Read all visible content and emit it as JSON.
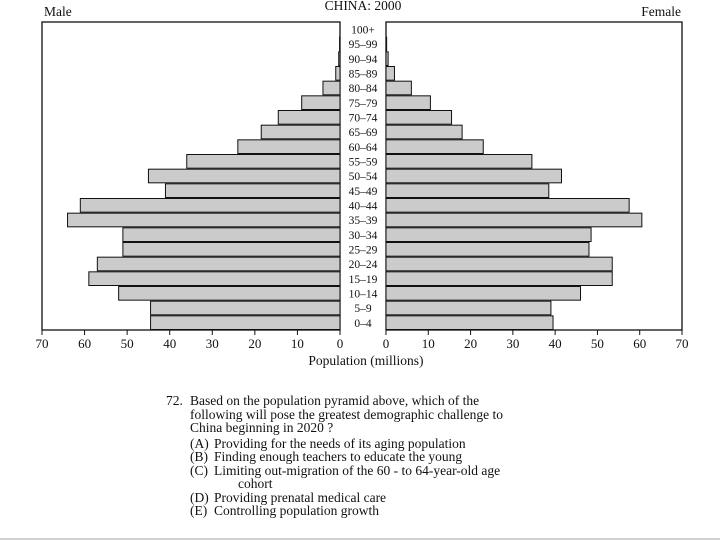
{
  "chart_data": {
    "type": "bar",
    "title": "CHINA: 2000",
    "left_panel_label": "Male",
    "right_panel_label": "Female",
    "xlabel": "Population (millions)",
    "xlim": [
      0,
      70
    ],
    "x_ticks": [
      "0",
      "10",
      "20",
      "30",
      "40",
      "50",
      "60",
      "70"
    ],
    "categories": [
      "0–4",
      "5–9",
      "10–14",
      "15–19",
      "20–24",
      "25–29",
      "30–34",
      "35–39",
      "40–44",
      "45–49",
      "50–54",
      "55–59",
      "60–64",
      "65–69",
      "70–74",
      "75–79",
      "80–84",
      "85–89",
      "90–94",
      "95–99",
      "100+"
    ],
    "series": [
      {
        "name": "Male",
        "values": [
          44.5,
          44.5,
          52,
          59,
          57,
          51,
          51,
          64,
          61,
          41,
          45,
          36,
          24,
          18.5,
          14.5,
          9,
          4,
          1,
          0.3,
          0.1,
          0
        ]
      },
      {
        "name": "Female",
        "values": [
          39.5,
          39,
          46,
          53.5,
          53.5,
          48,
          48.5,
          60.5,
          57.5,
          38.5,
          41.5,
          34.5,
          23,
          18,
          15.5,
          10.5,
          6,
          2,
          0.5,
          0.15,
          0
        ]
      }
    ],
    "colors": {
      "bar_fill": "#cbcbcb",
      "bar_stroke": "#111111",
      "frame": "#111111"
    }
  },
  "question": {
    "number": "72.",
    "text_lines": [
      "Based on the population pyramid above, which of the",
      "following will pose the greatest demographic challenge to",
      "China beginning in 2020 ?"
    ],
    "options": [
      {
        "letter": "(A)",
        "lines": [
          "Providing for the needs of its aging population"
        ]
      },
      {
        "letter": "(B)",
        "lines": [
          "Finding enough teachers to educate the young"
        ]
      },
      {
        "letter": "(C)",
        "lines": [
          "Limiting out-migration of the 60 - to 64-year-old age",
          "cohort"
        ]
      },
      {
        "letter": "(D)",
        "lines": [
          "Providing prenatal medical care"
        ]
      },
      {
        "letter": "(E)",
        "lines": [
          "Controlling population growth"
        ]
      }
    ]
  }
}
